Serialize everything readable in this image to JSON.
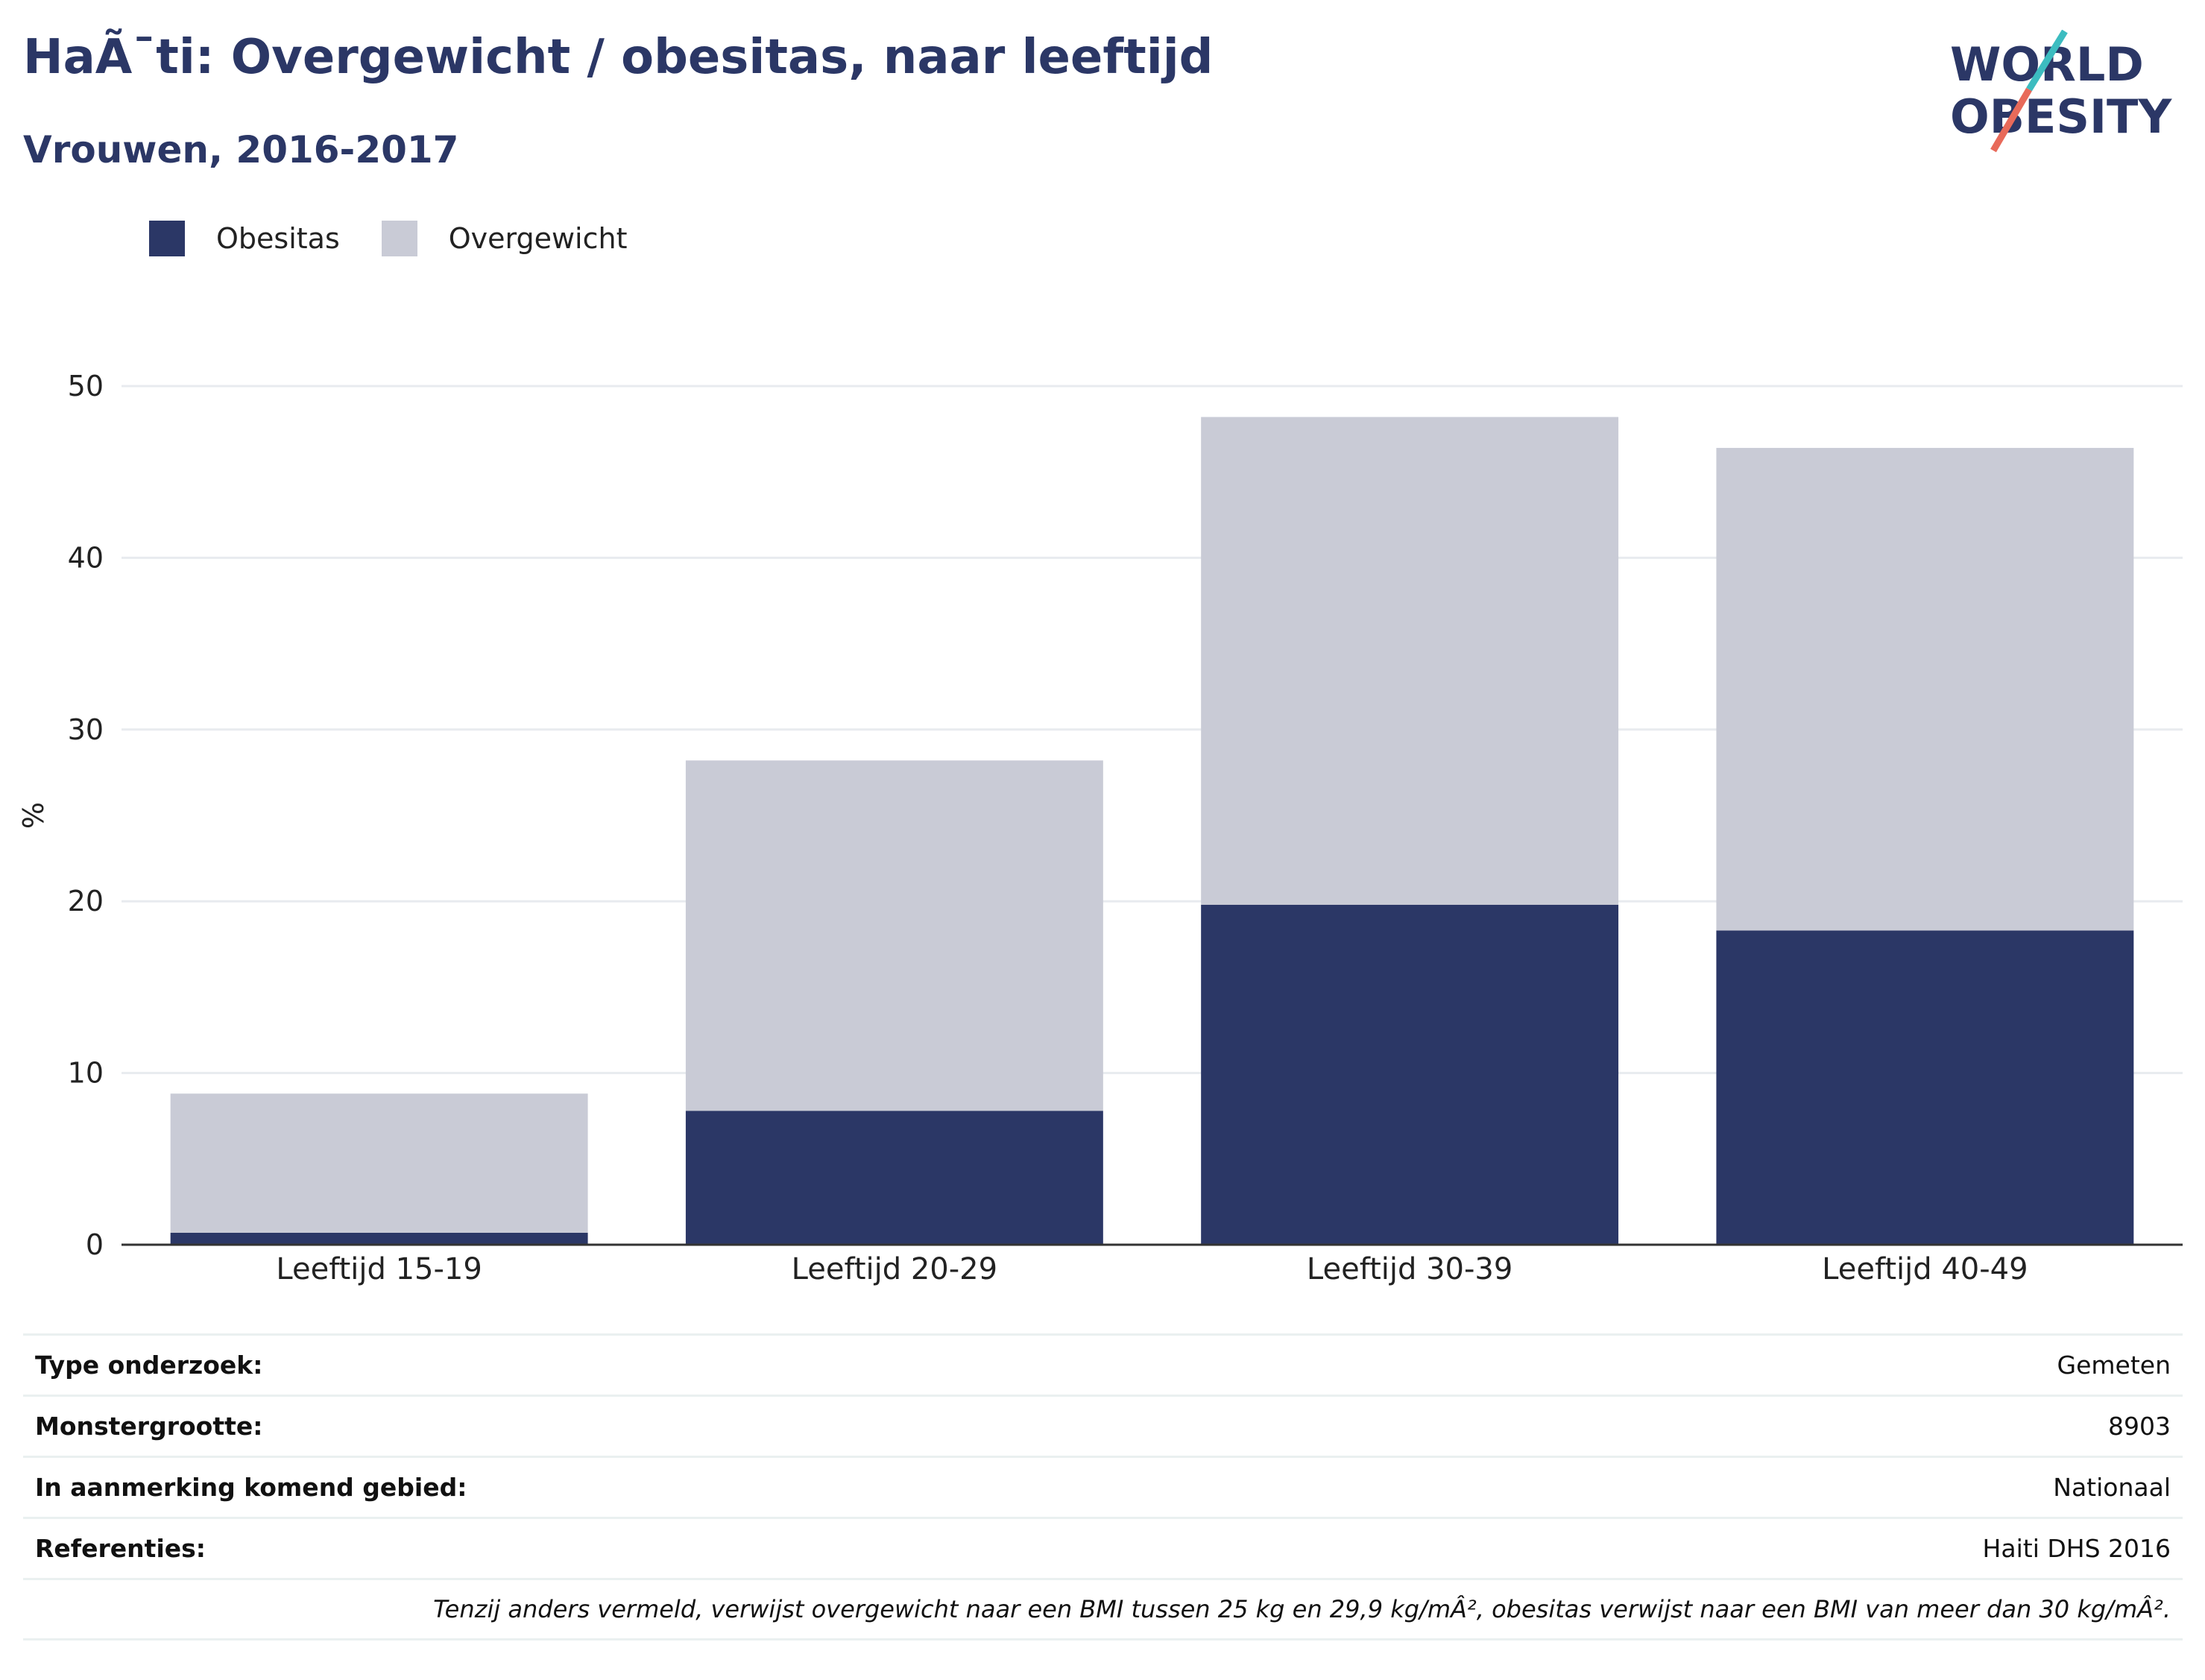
{
  "header": {
    "title": "HaÃ¯ti: Overgewicht / obesitas, naar leeftijd",
    "subtitle": "Vrouwen, 2016-2017"
  },
  "logo": {
    "line1": "WORLD",
    "line2": "OBESITY"
  },
  "legend": [
    {
      "label": "Obesitas",
      "color": "#2b3766"
    },
    {
      "label": "Overgewicht",
      "color": "#c9cbd6"
    }
  ],
  "chart_data": {
    "type": "bar",
    "stacked": true,
    "categories": [
      "Leeftijd 15-19",
      "Leeftijd 20-29",
      "Leeftijd 30-39",
      "Leeftijd 40-49"
    ],
    "series": [
      {
        "name": "Obesitas",
        "color": "#2b3766",
        "values": [
          0.7,
          7.8,
          19.8,
          18.3
        ]
      },
      {
        "name": "Overgewicht",
        "color": "#c9cbd6",
        "values": [
          8.1,
          20.4,
          28.4,
          28.1
        ]
      }
    ],
    "ylabel": "%",
    "ylim": [
      0,
      50
    ],
    "yticks": [
      0,
      10,
      20,
      30,
      40,
      50
    ],
    "grid": true,
    "legend_position": "top-left"
  },
  "info": [
    {
      "label": "Type onderzoek:",
      "value": "Gemeten"
    },
    {
      "label": "Monstergrootte:",
      "value": "8903"
    },
    {
      "label": "In aanmerking komend gebied:",
      "value": "Nationaal"
    },
    {
      "label": "Referenties:",
      "value": "Haiti DHS 2016"
    }
  ],
  "footnote": "Tenzij anders vermeld, verwijst overgewicht naar een BMI tussen 25 kg en 29,9 kg/mÂ², obesitas verwijst naar een BMI van meer dan 30 kg/mÂ²."
}
